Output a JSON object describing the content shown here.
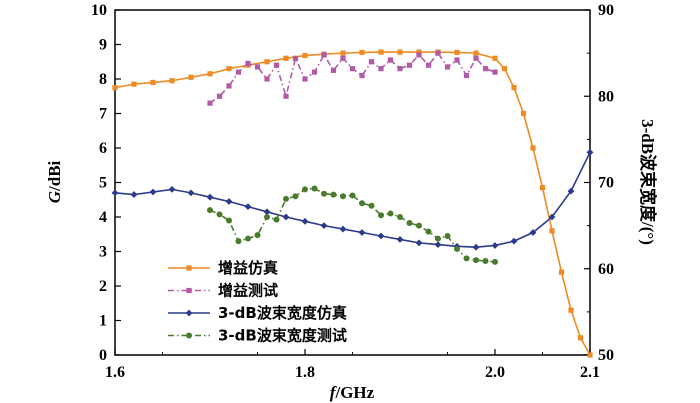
{
  "chart_data": {
    "type": "line",
    "title": "",
    "xlabel": {
      "italic": "f",
      "rest": "/GHz"
    },
    "ylabel": {
      "italic": "G",
      "rest": "/dBi"
    },
    "y2label": "3-dB波束宽度/(°)",
    "xlim": [
      1.6,
      2.1
    ],
    "ylim": [
      0,
      10
    ],
    "y2lim": [
      50,
      90
    ],
    "xticks": [
      "1.6",
      "1.8",
      "2.0",
      "2.1"
    ],
    "yticks": [
      "0",
      "1",
      "2",
      "3",
      "4",
      "5",
      "6",
      "7",
      "8",
      "9",
      "10"
    ],
    "y2ticks": [
      "50",
      "60",
      "70",
      "80",
      "90"
    ],
    "legend_position": "lower-left",
    "series": [
      {
        "name": "增益仿真",
        "axis": "left",
        "color": "#f08a24",
        "style": "solid",
        "marker": "square",
        "x": [
          1.6,
          1.62,
          1.64,
          1.66,
          1.68,
          1.7,
          1.72,
          1.74,
          1.76,
          1.78,
          1.8,
          1.82,
          1.84,
          1.86,
          1.88,
          1.9,
          1.92,
          1.94,
          1.96,
          1.98,
          2.0,
          2.01,
          2.02,
          2.03,
          2.04,
          2.05,
          2.06,
          2.07,
          2.08,
          2.09,
          2.1
        ],
        "y": [
          7.75,
          7.85,
          7.9,
          7.95,
          8.05,
          8.15,
          8.3,
          8.4,
          8.5,
          8.6,
          8.68,
          8.72,
          8.75,
          8.77,
          8.78,
          8.78,
          8.78,
          8.78,
          8.77,
          8.75,
          8.6,
          8.3,
          7.75,
          7.0,
          6.0,
          4.85,
          3.6,
          2.4,
          1.3,
          0.5,
          0.0
        ]
      },
      {
        "name": "增益测试",
        "axis": "left",
        "color": "#b15aa6",
        "style": "dashdot",
        "marker": "square",
        "x": [
          1.7,
          1.71,
          1.72,
          1.73,
          1.74,
          1.75,
          1.76,
          1.77,
          1.78,
          1.79,
          1.8,
          1.81,
          1.82,
          1.83,
          1.84,
          1.85,
          1.86,
          1.87,
          1.88,
          1.89,
          1.9,
          1.91,
          1.92,
          1.93,
          1.94,
          1.95,
          1.96,
          1.97,
          1.98,
          1.99,
          2.0
        ],
        "y": [
          7.3,
          7.5,
          7.8,
          8.2,
          8.45,
          8.35,
          8.0,
          8.4,
          7.5,
          8.6,
          8.0,
          8.2,
          8.7,
          8.25,
          8.6,
          8.3,
          8.1,
          8.5,
          8.3,
          8.55,
          8.3,
          8.4,
          8.7,
          8.4,
          8.75,
          8.35,
          8.55,
          8.1,
          8.6,
          8.3,
          8.2
        ]
      },
      {
        "name": "3-dB波束宽度仿真",
        "axis": "right",
        "color": "#2c3a8c",
        "style": "solid",
        "marker": "diamond",
        "x": [
          1.6,
          1.62,
          1.64,
          1.66,
          1.68,
          1.7,
          1.72,
          1.74,
          1.76,
          1.78,
          1.8,
          1.82,
          1.84,
          1.86,
          1.88,
          1.9,
          1.92,
          1.94,
          1.96,
          1.98,
          2.0,
          2.02,
          2.04,
          2.06,
          2.08,
          2.1
        ],
        "y": [
          68.8,
          68.6,
          68.9,
          69.2,
          68.8,
          68.3,
          67.8,
          67.2,
          66.6,
          66.0,
          65.5,
          65.0,
          64.6,
          64.2,
          63.8,
          63.4,
          63.0,
          62.8,
          62.6,
          62.5,
          62.7,
          63.2,
          64.2,
          66.0,
          69.0,
          73.5
        ]
      },
      {
        "name": "3-dB波束宽度测试",
        "axis": "right",
        "color": "#4a7a2c",
        "style": "dashdot",
        "marker": "circle",
        "x": [
          1.7,
          1.71,
          1.72,
          1.73,
          1.74,
          1.75,
          1.76,
          1.77,
          1.78,
          1.79,
          1.8,
          1.81,
          1.82,
          1.83,
          1.84,
          1.85,
          1.86,
          1.87,
          1.88,
          1.89,
          1.9,
          1.91,
          1.92,
          1.93,
          1.94,
          1.95,
          1.96,
          1.97,
          1.98,
          1.99,
          2.0
        ],
        "y": [
          66.8,
          66.3,
          65.6,
          63.2,
          63.5,
          63.9,
          66.0,
          65.7,
          68.1,
          68.4,
          69.2,
          69.3,
          68.7,
          68.6,
          68.4,
          68.5,
          67.6,
          67.3,
          66.2,
          66.4,
          66.0,
          65.3,
          65.0,
          64.3,
          63.5,
          63.8,
          62.3,
          61.2,
          61.0,
          60.9,
          60.8
        ]
      }
    ]
  }
}
